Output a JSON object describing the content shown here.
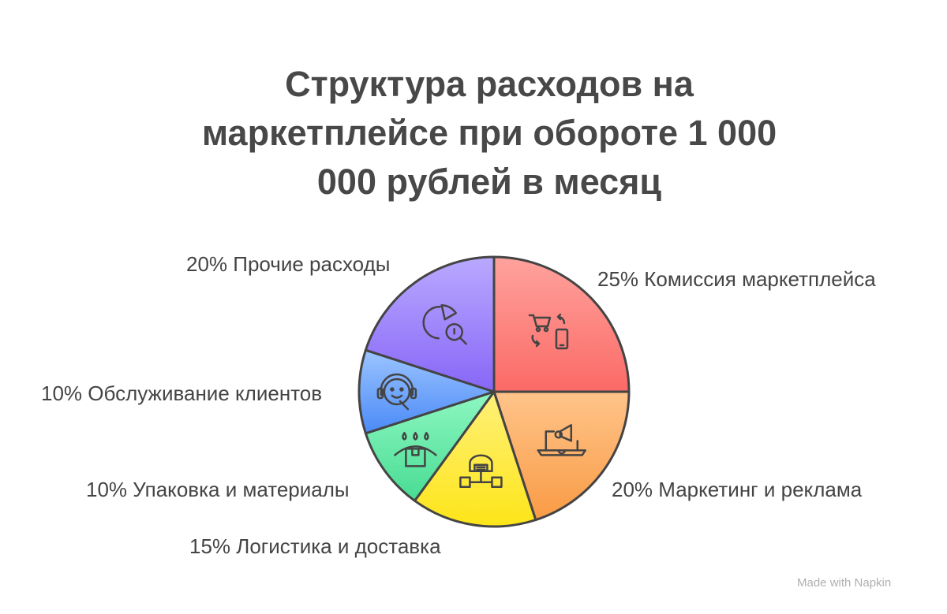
{
  "chart_data": {
    "type": "pie",
    "title_lines": [
      "Структура расходов на",
      "маркетплейсе при обороте 1 000",
      "000 рублей в месяц"
    ],
    "slices": [
      {
        "label": "25% Комиссия маркетплейса",
        "value": 25,
        "icon": "cart-phone-exchange-icon",
        "colors": [
          "#ffa29d",
          "#fb6a66"
        ]
      },
      {
        "label": "20% Маркетинг и реклама",
        "value": 20,
        "icon": "laptop-megaphone-icon",
        "colors": [
          "#ffc48a",
          "#f99b45"
        ]
      },
      {
        "label": "15% Логистика и доставка",
        "value": 15,
        "icon": "warehouse-network-icon",
        "colors": [
          "#fff07a",
          "#fde518"
        ]
      },
      {
        "label": "10% Упаковка и материалы",
        "value": 10,
        "icon": "package-rain-icon",
        "colors": [
          "#8ef7c2",
          "#48dc92"
        ]
      },
      {
        "label": "10% Обслуживание клиентов",
        "value": 10,
        "icon": "support-headset-icon",
        "colors": [
          "#9cc4ff",
          "#4a8af7"
        ]
      },
      {
        "label": "20% Прочие расходы",
        "value": 20,
        "icon": "pie-chart-search-icon",
        "colors": [
          "#b9a9ff",
          "#8766f7"
        ]
      }
    ],
    "start_angle": "top",
    "direction": "clockwise",
    "legend": "none"
  },
  "credit": "Made with  Napkin"
}
